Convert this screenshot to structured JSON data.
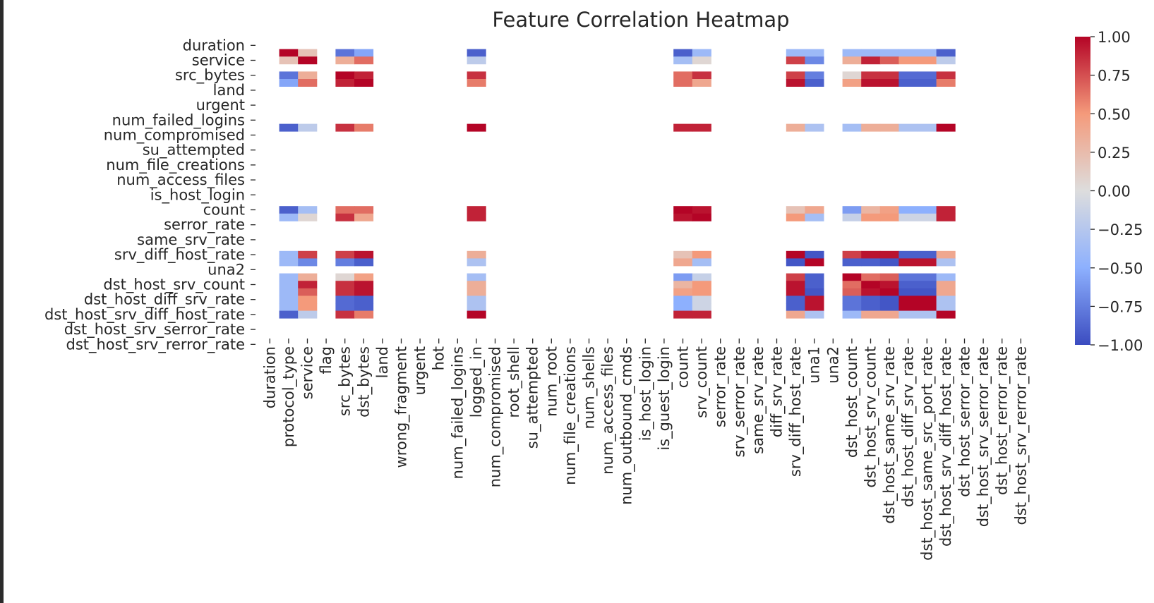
{
  "chart_data": {
    "type": "heatmap",
    "title": "Feature Correlation Heatmap",
    "colormap": "coolwarm",
    "colorbar": {
      "min": -1.0,
      "max": 1.0,
      "ticks": [
        "1.00",
        "0.75",
        "0.50",
        "0.25",
        "0.00",
        "−0.25",
        "−0.50",
        "−0.75",
        "−1.00"
      ]
    },
    "row_tick_labels": [
      "duration",
      "service",
      "src_bytes",
      "land",
      "urgent",
      "num_failed_logins",
      "num_compromised",
      "su_attempted",
      "num_file_creations",
      "num_access_files",
      "is_host_login",
      "count",
      "serror_rate",
      "same_srv_rate",
      "srv_diff_host_rate",
      "una2",
      "dst_host_srv_count",
      "dst_host_diff_srv_rate",
      "dst_host_srv_diff_host_rate",
      "dst_host_srv_serror_rate",
      "dst_host_srv_rerror_rate"
    ],
    "features": [
      "duration",
      "protocol_type",
      "service",
      "flag",
      "src_bytes",
      "dst_bytes",
      "land",
      "wrong_fragment",
      "urgent",
      "hot",
      "num_failed_logins",
      "logged_in",
      "num_compromised",
      "root_shell",
      "su_attempted",
      "num_root",
      "num_file_creations",
      "num_shells",
      "num_access_files",
      "num_outbound_cmds",
      "is_host_login",
      "is_guest_login",
      "count",
      "srv_count",
      "serror_rate",
      "srv_serror_rate",
      "same_srv_rate",
      "diff_srv_rate",
      "srv_diff_host_rate",
      "una1",
      "una2",
      "dst_host_count",
      "dst_host_srv_count",
      "dst_host_same_srv_rate",
      "dst_host_diff_srv_rate",
      "dst_host_same_src_port_rate",
      "dst_host_srv_diff_host_rate",
      "dst_host_serror_rate",
      "dst_host_srv_serror_rate",
      "dst_host_rerror_rate",
      "dst_host_srv_rerror_rate"
    ],
    "active_features": [
      1,
      2,
      4,
      5,
      11,
      22,
      23,
      28,
      29,
      31,
      32,
      33,
      34,
      35,
      36
    ],
    "active_corr": [
      [
        1.0,
        0.2,
        -0.8,
        -0.55,
        -0.9,
        -0.9,
        -0.4,
        -0.4,
        -0.4,
        -0.4,
        -0.4,
        -0.4,
        -0.4,
        -0.4,
        -0.9
      ],
      [
        0.2,
        1.0,
        0.35,
        0.65,
        -0.2,
        -0.35,
        0.05,
        0.8,
        -0.7,
        0.35,
        0.9,
        0.7,
        0.5,
        0.5,
        -0.2
      ],
      [
        -0.8,
        0.35,
        1.0,
        0.9,
        0.85,
        0.65,
        0.85,
        0.8,
        -0.75,
        0.05,
        0.85,
        0.85,
        -0.85,
        -0.85,
        0.85
      ],
      [
        -0.55,
        0.65,
        0.9,
        1.0,
        0.6,
        0.65,
        0.4,
        0.95,
        -0.9,
        0.45,
        0.95,
        0.95,
        -0.9,
        -0.9,
        0.6
      ],
      [
        -0.9,
        -0.2,
        0.85,
        0.6,
        1.0,
        0.9,
        0.9,
        0.35,
        -0.3,
        -0.35,
        0.35,
        0.35,
        -0.3,
        -0.3,
        1.0
      ],
      [
        -0.9,
        -0.35,
        0.65,
        0.65,
        0.9,
        1.0,
        0.95,
        0.2,
        0.4,
        -0.6,
        0.3,
        0.45,
        -0.5,
        -0.5,
        0.9
      ],
      [
        -0.4,
        0.05,
        0.85,
        0.4,
        0.9,
        0.95,
        1.0,
        0.5,
        -0.35,
        -0.15,
        0.5,
        0.5,
        -0.1,
        -0.1,
        0.9
      ],
      [
        -0.4,
        0.8,
        0.8,
        0.95,
        0.35,
        0.2,
        0.5,
        1.0,
        -0.95,
        0.8,
        0.95,
        0.95,
        -0.9,
        -0.9,
        0.4
      ],
      [
        -0.4,
        -0.7,
        -0.75,
        -0.9,
        -0.3,
        0.4,
        -0.35,
        -0.95,
        1.0,
        -0.9,
        -0.9,
        -0.95,
        0.95,
        0.95,
        -0.3
      ],
      [
        -0.4,
        0.35,
        0.05,
        0.45,
        -0.35,
        -0.6,
        -0.15,
        0.8,
        -0.9,
        1.0,
        0.65,
        0.7,
        -0.8,
        -0.8,
        -0.4
      ],
      [
        -0.4,
        0.9,
        0.85,
        0.95,
        0.35,
        0.3,
        0.5,
        0.95,
        -0.9,
        0.65,
        1.0,
        0.95,
        -0.9,
        -0.9,
        0.4
      ],
      [
        -0.4,
        0.7,
        0.85,
        0.95,
        0.35,
        0.45,
        0.5,
        0.95,
        -0.95,
        0.7,
        0.95,
        1.0,
        -0.95,
        -0.95,
        0.4
      ],
      [
        -0.4,
        0.5,
        -0.85,
        -0.9,
        -0.3,
        -0.5,
        -0.1,
        -0.9,
        0.95,
        -0.8,
        -0.9,
        -0.95,
        1.0,
        1.0,
        -0.3
      ],
      [
        -0.4,
        0.5,
        -0.85,
        -0.9,
        -0.3,
        -0.5,
        -0.1,
        -0.9,
        0.95,
        -0.8,
        -0.9,
        -0.95,
        1.0,
        1.0,
        -0.3
      ],
      [
        -0.9,
        -0.2,
        0.85,
        0.6,
        1.0,
        0.9,
        0.9,
        0.4,
        -0.3,
        -0.4,
        0.4,
        0.4,
        -0.3,
        -0.3,
        1.0
      ]
    ]
  }
}
